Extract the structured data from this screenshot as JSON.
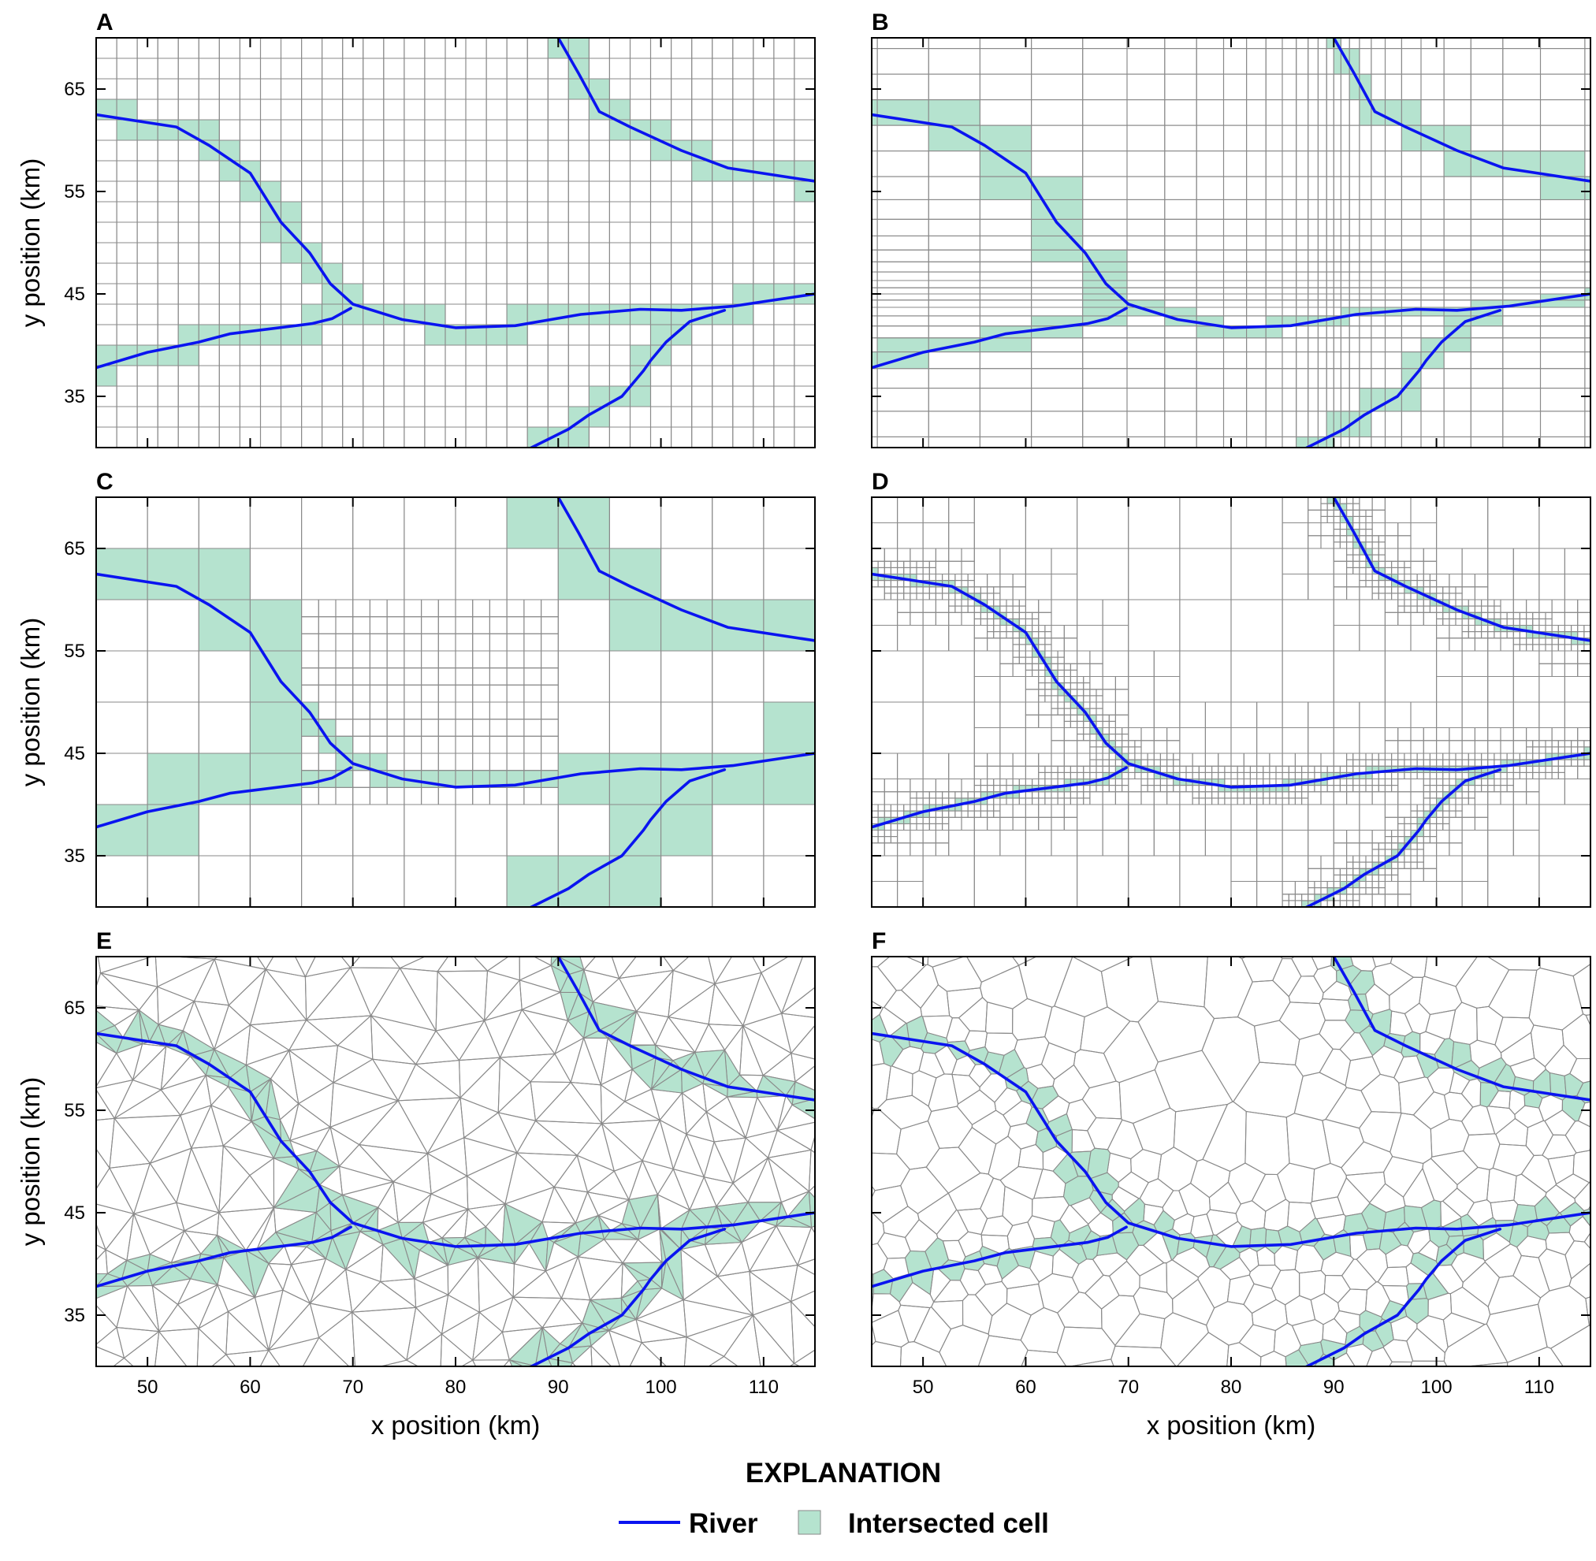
{
  "figure": {
    "x_axis_label": "x position (km)",
    "y_axis_label": "y position (km)",
    "x_range": [
      45,
      115
    ],
    "y_range": [
      30,
      70
    ],
    "x_ticks": [
      50,
      60,
      70,
      80,
      90,
      100,
      110
    ],
    "y_ticks": [
      35,
      45,
      55,
      65
    ]
  },
  "panels": [
    {
      "letter": "A",
      "grid": "regular-2km"
    },
    {
      "letter": "B",
      "grid": "variable-spacing"
    },
    {
      "letter": "C",
      "grid": "nested-local-refinement"
    },
    {
      "letter": "D",
      "grid": "quadtree"
    },
    {
      "letter": "E",
      "grid": "triangular"
    },
    {
      "letter": "F",
      "grid": "voronoi"
    }
  ],
  "rivers": [
    [
      [
        45,
        62.5
      ],
      [
        52.8,
        61.3
      ],
      [
        56,
        59.5
      ],
      [
        60,
        56.8
      ],
      [
        63,
        52
      ],
      [
        65.8,
        49
      ],
      [
        67.8,
        46
      ],
      [
        70,
        44
      ],
      [
        74.8,
        42.5
      ],
      [
        80,
        41.7
      ],
      [
        85.8,
        41.9
      ],
      [
        92.2,
        43
      ],
      [
        98,
        43.5
      ],
      [
        102,
        43.4
      ],
      [
        107,
        43.8
      ],
      [
        115,
        45
      ]
    ],
    [
      [
        45,
        37.8
      ],
      [
        50,
        39.3
      ],
      [
        55,
        40.3
      ],
      [
        58,
        41.1
      ],
      [
        66,
        42.1
      ],
      [
        68,
        42.6
      ],
      [
        69.8,
        43.6
      ]
    ],
    [
      [
        90,
        70
      ],
      [
        92,
        66.5
      ],
      [
        94,
        62.8
      ],
      [
        97,
        61.3
      ],
      [
        102,
        59
      ],
      [
        106.5,
        57.3
      ],
      [
        115,
        56
      ]
    ],
    [
      [
        87,
        29.8
      ],
      [
        91,
        31.8
      ],
      [
        93,
        33.2
      ],
      [
        96.2,
        35
      ],
      [
        98.3,
        37.5
      ],
      [
        99,
        38.5
      ],
      [
        100.5,
        40.3
      ],
      [
        102.8,
        42.3
      ],
      [
        106.2,
        43.4
      ]
    ]
  ],
  "legend": {
    "title": "EXPLANATION",
    "river_label": "River",
    "cell_label": "Intersected cell"
  },
  "colors": {
    "river": "#0a14f0",
    "cell_fill": "#b5e3cf",
    "grid_line": "#8a8a8a",
    "axis": "#000000"
  }
}
